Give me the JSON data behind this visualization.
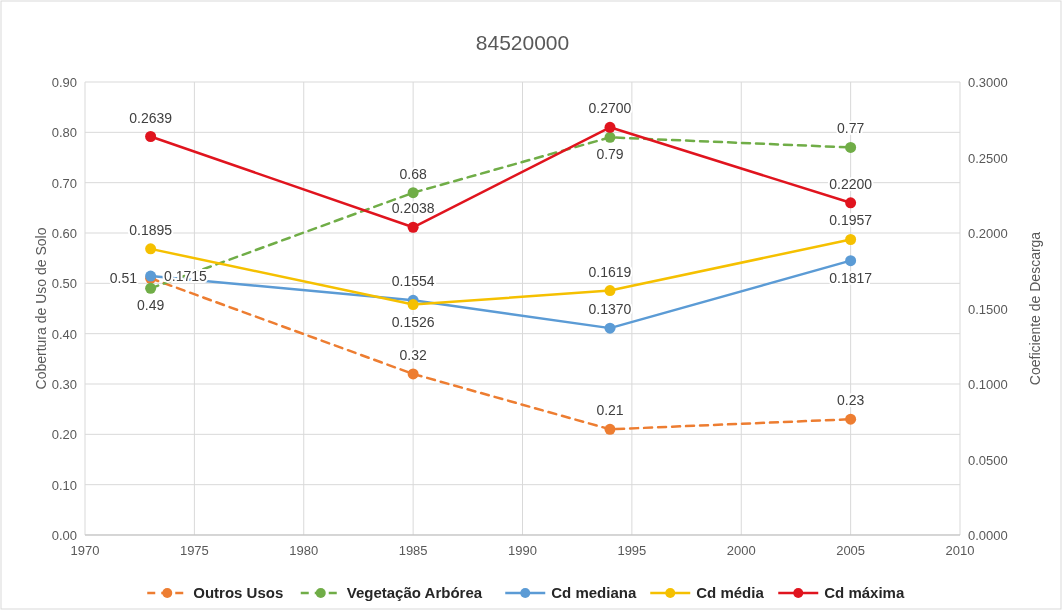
{
  "chart_data": {
    "type": "line",
    "title": "84520000",
    "ylabel": "Cobertura de Uso de Solo",
    "y2label": "Coeficiente de Descarga",
    "x": [
      1973,
      1985,
      1994,
      2005
    ],
    "series": [
      {
        "name": "Outros Usos",
        "color": "#ed7d31",
        "values": [
          0.51,
          0.32,
          0.21,
          0.23
        ],
        "line_style": "dashed",
        "value_labels": [
          "0.51",
          "0.32",
          "0.21",
          "0.23"
        ]
      },
      {
        "name": "Vegetação Arbórea",
        "color": "#70ad47",
        "values": [
          0.49,
          0.68,
          0.79,
          0.77
        ],
        "line_style": "dashed",
        "value_labels": [
          "0.49",
          "0.68",
          "0.79",
          "0.77"
        ]
      },
      {
        "name": "Cd mediana",
        "color": "#5b9bd5",
        "axis": "y2",
        "values": [
          0.1715,
          0.1554,
          0.137,
          0.1817
        ],
        "value_labels": [
          "0.1715",
          "0.1554",
          "0.1370",
          "0.1817"
        ]
      },
      {
        "name": "Cd média",
        "color": "#f5c000",
        "axis": "y2",
        "values": [
          0.1895,
          0.1526,
          0.1619,
          0.1957
        ],
        "value_labels": [
          "0.1895",
          "0.1526",
          "0.1619",
          "0.1957"
        ]
      },
      {
        "name": "Cd máxima",
        "color": "#e0141e",
        "axis": "y2",
        "values": [
          0.2639,
          0.2038,
          0.27,
          0.22
        ],
        "value_labels": [
          "0.2639",
          "0.2038",
          "0.2700",
          "0.2200"
        ]
      }
    ],
    "xlim": [
      1970,
      2010
    ],
    "xticks": [
      1970,
      1975,
      1980,
      1985,
      1990,
      1995,
      2000,
      2005,
      2010
    ],
    "ylim": [
      0,
      0.9
    ],
    "yticks": [
      {
        "value": 0,
        "label": "0.00"
      },
      {
        "value": 0.1,
        "label": "0.10"
      },
      {
        "value": 0.2,
        "label": "0.20"
      },
      {
        "value": 0.3,
        "label": "0.30"
      },
      {
        "value": 0.4,
        "label": "0.40"
      },
      {
        "value": 0.5,
        "label": "0.50"
      },
      {
        "value": 0.6,
        "label": "0.60"
      },
      {
        "value": 0.7,
        "label": "0.70"
      },
      {
        "value": 0.8,
        "label": "0.80"
      },
      {
        "value": 0.9,
        "label": "0.90"
      }
    ],
    "y2lim": [
      0,
      0.3
    ],
    "y2ticks": [
      {
        "value": 0,
        "label": "0.0000"
      },
      {
        "value": 0.05,
        "label": "0.0500"
      },
      {
        "value": 0.1,
        "label": "0.1000"
      },
      {
        "value": 0.15,
        "label": "0.1500"
      },
      {
        "value": 0.2,
        "label": "0.2000"
      },
      {
        "value": 0.25,
        "label": "0.2500"
      },
      {
        "value": 0.3,
        "label": "0.3000"
      }
    ],
    "grid": true,
    "legend": "bottom",
    "marker": "circle"
  }
}
